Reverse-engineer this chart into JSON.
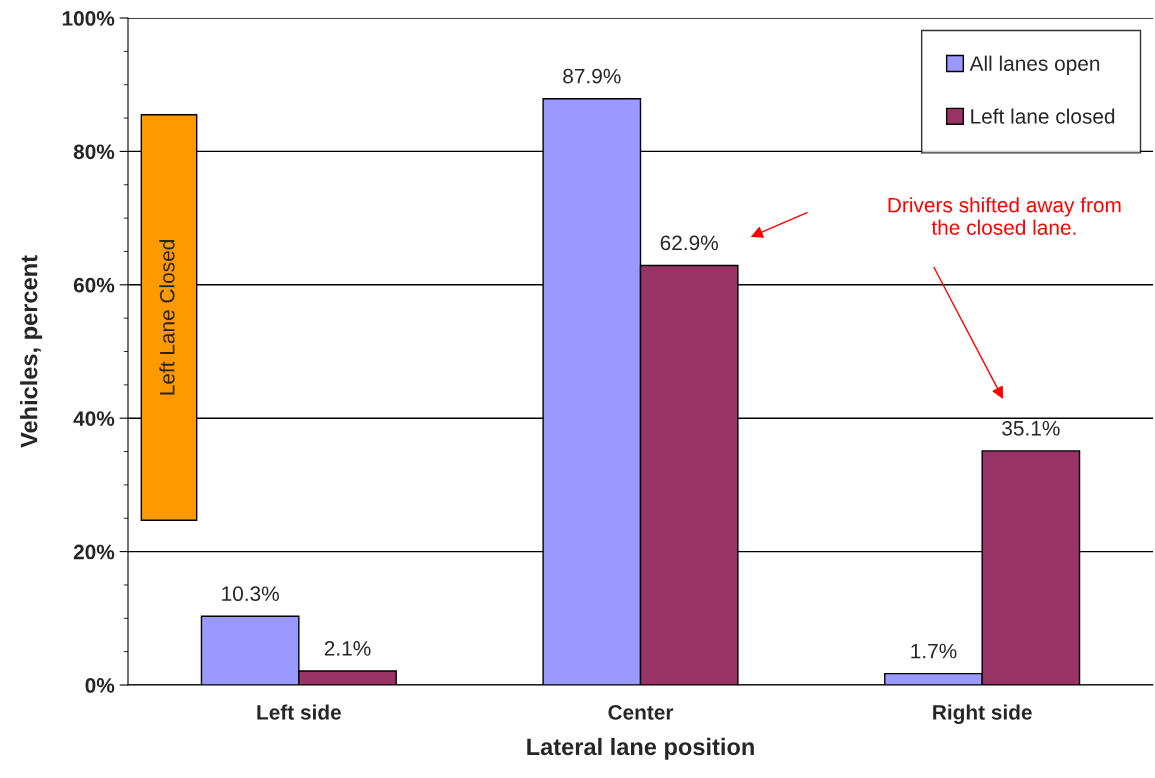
{
  "chart_data": {
    "type": "bar",
    "xlabel": "Lateral lane position",
    "ylabel": "Vehicles, percent",
    "categories": [
      "Left side",
      "Center",
      "Right side"
    ],
    "series": [
      {
        "name": "All lanes open",
        "color": "#9999ff",
        "values": [
          10.3,
          87.9,
          1.7
        ],
        "value_labels": [
          "10.3%",
          "87.9%",
          "1.7%"
        ]
      },
      {
        "name": "Left lane closed",
        "color": "#993366",
        "values": [
          2.1,
          62.9,
          35.1
        ],
        "value_labels": [
          "2.1%",
          "62.9%",
          "35.1%"
        ]
      }
    ],
    "ylim": [
      0,
      100
    ],
    "yticks": [
      {
        "value": 0,
        "label": "0%"
      },
      {
        "value": 20,
        "label": "20%"
      },
      {
        "value": 40,
        "label": "40%"
      },
      {
        "value": 60,
        "label": "60%"
      },
      {
        "value": 80,
        "label": "80%"
      },
      {
        "value": 100,
        "label": "100%"
      }
    ],
    "grid": "y",
    "legend": "top right",
    "annotations": [
      "Left Lane Closed",
      "Drivers shifted away from\nthe closed lane."
    ]
  }
}
